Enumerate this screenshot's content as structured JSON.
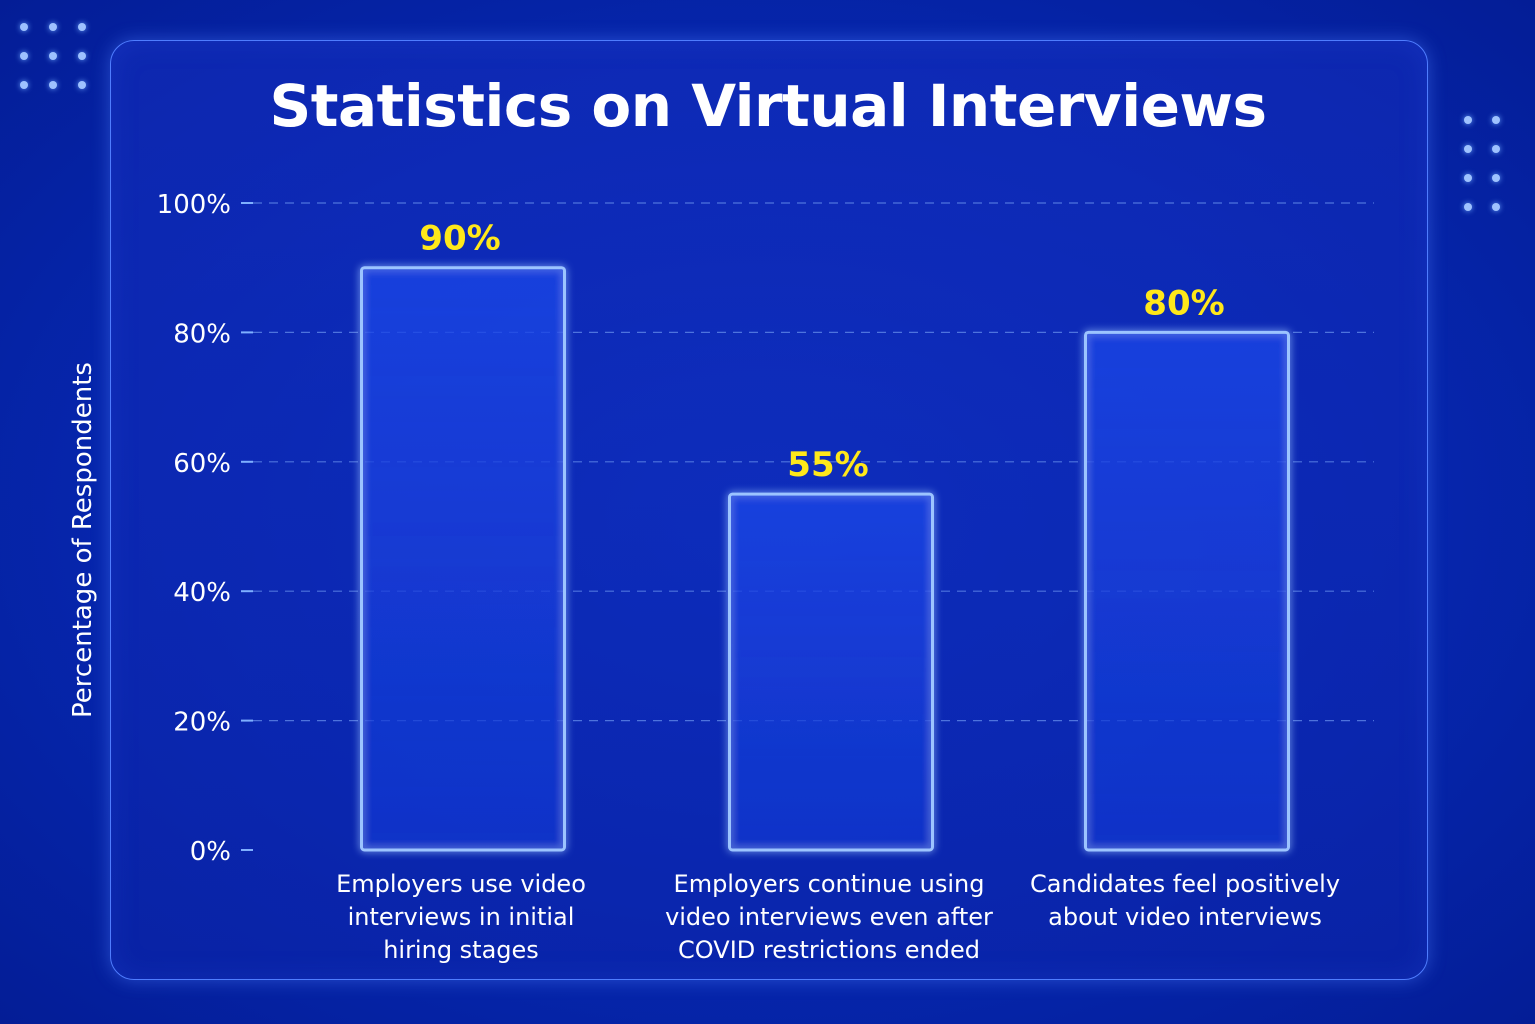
{
  "chart_data": {
    "type": "bar",
    "title": "Statistics on Virtual Interviews",
    "xlabel": "",
    "ylabel": "Percentage of Respondents",
    "ylim": [
      0,
      100
    ],
    "yticks": [
      "0%",
      "20%",
      "40%",
      "60%",
      "80%",
      "100%"
    ],
    "ytick_values": [
      0,
      20,
      40,
      60,
      80,
      100
    ],
    "grid": true,
    "categories": [
      [
        "Employers use video",
        "interviews in initial",
        "hiring stages"
      ],
      [
        "Employers continue using",
        "video interviews even after",
        "COVID restrictions ended"
      ],
      [
        "Candidates feel positively",
        "about video interviews"
      ]
    ],
    "values": [
      90,
      55,
      80
    ],
    "value_labels": [
      "90%",
      "55%",
      "80%"
    ],
    "colors": {
      "bar_outline": "#9cc4ff",
      "bar_glow": "#3f86ff",
      "value_label": "#ffe81a",
      "axis": "#7fb0ff",
      "grid": "#5f86e8"
    }
  }
}
